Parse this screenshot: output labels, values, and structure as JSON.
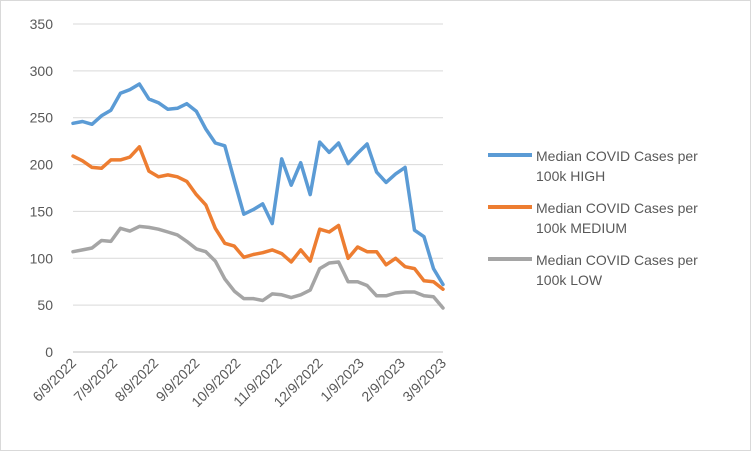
{
  "chart_data": {
    "type": "line",
    "title": "",
    "xlabel": "",
    "ylabel": "",
    "ylim": [
      0,
      350
    ],
    "yticks": [
      "0",
      "50",
      "100",
      "150",
      "200",
      "250",
      "300",
      "350"
    ],
    "xtick_labels": [
      "6/9/2022",
      "7/9/2022",
      "8/9/2022",
      "9/9/2022",
      "10/9/2022",
      "11/9/2022",
      "12/9/2022",
      "1/9/2023",
      "2/9/2023",
      "3/9/2023"
    ],
    "grid": true,
    "legend_position": "right",
    "x": [
      "6/9/2022",
      "6/16/2022",
      "6/23/2022",
      "6/30/2022",
      "7/7/2022",
      "7/14/2022",
      "7/21/2022",
      "7/28/2022",
      "8/4/2022",
      "8/11/2022",
      "8/18/2022",
      "8/25/2022",
      "9/1/2022",
      "9/8/2022",
      "9/15/2022",
      "9/22/2022",
      "9/29/2022",
      "10/6/2022",
      "10/13/2022",
      "10/20/2022",
      "10/27/2022",
      "11/3/2022",
      "11/10/2022",
      "11/17/2022",
      "11/24/2022",
      "12/1/2022",
      "12/8/2022",
      "12/15/2022",
      "12/22/2022",
      "12/29/2022",
      "1/5/2023",
      "1/12/2023",
      "1/19/2023",
      "1/26/2023",
      "2/2/2023",
      "2/9/2023",
      "2/16/2023",
      "2/23/2023",
      "3/2/2023",
      "3/9/2023"
    ],
    "series": [
      {
        "name": "Median COVID Cases per 100k HIGH",
        "color": "#5b9bd5",
        "values": [
          244,
          246,
          243,
          252,
          258,
          276,
          280,
          286,
          270,
          266,
          259,
          260,
          265,
          257,
          238,
          223,
          220,
          183,
          147,
          152,
          158,
          137,
          206,
          178,
          202,
          168,
          224,
          213,
          223,
          201,
          212,
          222,
          192,
          181,
          190,
          197,
          130,
          123,
          89,
          72
        ]
      },
      {
        "name": "Median COVID Cases per 100k MEDIUM",
        "color": "#ed7d31",
        "values": [
          209,
          204,
          197,
          196,
          205,
          205,
          208,
          219,
          193,
          187,
          189,
          187,
          182,
          168,
          157,
          132,
          116,
          113,
          101,
          104,
          106,
          109,
          105,
          96,
          109,
          97,
          131,
          128,
          135,
          100,
          112,
          107,
          107,
          93,
          100,
          91,
          89,
          76,
          75,
          67
        ]
      },
      {
        "name": "Median COVID Cases per 100k LOW",
        "color": "#a5a5a5",
        "values": [
          107,
          109,
          111,
          119,
          118,
          132,
          129,
          134,
          133,
          131,
          128,
          125,
          118,
          110,
          107,
          97,
          78,
          65,
          57,
          57,
          55,
          62,
          61,
          58,
          61,
          66,
          89,
          95,
          96,
          75,
          75,
          71,
          60,
          60,
          63,
          64,
          64,
          60,
          59,
          47
        ]
      }
    ]
  }
}
